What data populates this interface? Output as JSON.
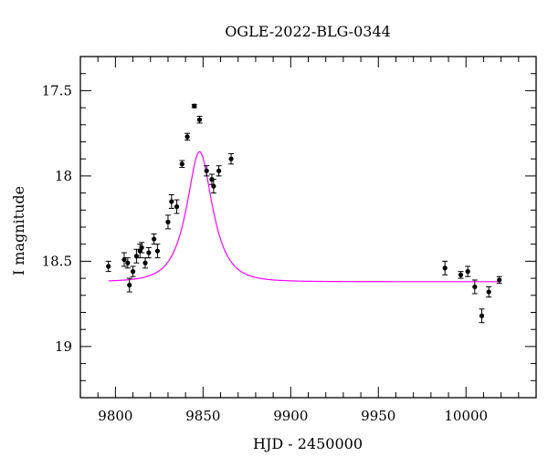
{
  "chart_data": {
    "type": "scatter",
    "title": "OGLE-2022-BLG-0344",
    "xlabel": "HJD - 2450000",
    "ylabel": "I magnitude",
    "xlim": [
      9780,
      10040
    ],
    "ylim": [
      19.3,
      17.3
    ],
    "y_inverted": true,
    "grid": false,
    "x_major_ticks": [
      9800,
      9850,
      9900,
      9950,
      10000
    ],
    "x_minor_step": 10,
    "y_major_ticks": [
      17.5,
      18,
      18.5,
      19
    ],
    "y_minor_step": 0.1,
    "x_tick_labels": [
      "9800",
      "9850",
      "9900",
      "9950",
      "10000"
    ],
    "y_tick_labels": [
      "17.5",
      "18",
      "18.5",
      "19"
    ],
    "colors": {
      "data": "#000000",
      "model": "#ff00ff",
      "frame": "#000000"
    },
    "series": [
      {
        "type": "errorbar",
        "x": [
          9796,
          9805,
          9807,
          9808,
          9810,
          9812,
          9814,
          9815,
          9817,
          9819,
          9822,
          9824,
          9830,
          9832,
          9835,
          9838,
          9841,
          9845,
          9848,
          9852,
          9855,
          9856,
          9859,
          9866,
          9988,
          9997,
          10001,
          10005,
          10009,
          10013,
          10019
        ],
        "y": [
          18.53,
          18.49,
          18.51,
          18.64,
          18.56,
          18.47,
          18.44,
          18.42,
          18.51,
          18.45,
          18.37,
          18.44,
          18.27,
          18.15,
          18.18,
          17.93,
          17.77,
          17.59,
          17.67,
          17.97,
          18.02,
          18.06,
          17.97,
          17.9,
          18.54,
          18.58,
          18.56,
          18.65,
          18.82,
          18.68,
          18.61
        ],
        "err": [
          0.03,
          0.04,
          0.03,
          0.04,
          0.03,
          0.04,
          0.04,
          0.03,
          0.03,
          0.03,
          0.03,
          0.04,
          0.04,
          0.04,
          0.04,
          0.02,
          0.02,
          0.01,
          0.02,
          0.03,
          0.03,
          0.04,
          0.03,
          0.03,
          0.04,
          0.02,
          0.03,
          0.04,
          0.04,
          0.03,
          0.02
        ]
      },
      {
        "type": "line",
        "model": "microlensing",
        "t0": 9848,
        "tE": 12,
        "u0": 0.55,
        "baseline": 18.62,
        "blend": 0.0,
        "x_range": [
          9796,
          10020
        ]
      }
    ]
  }
}
